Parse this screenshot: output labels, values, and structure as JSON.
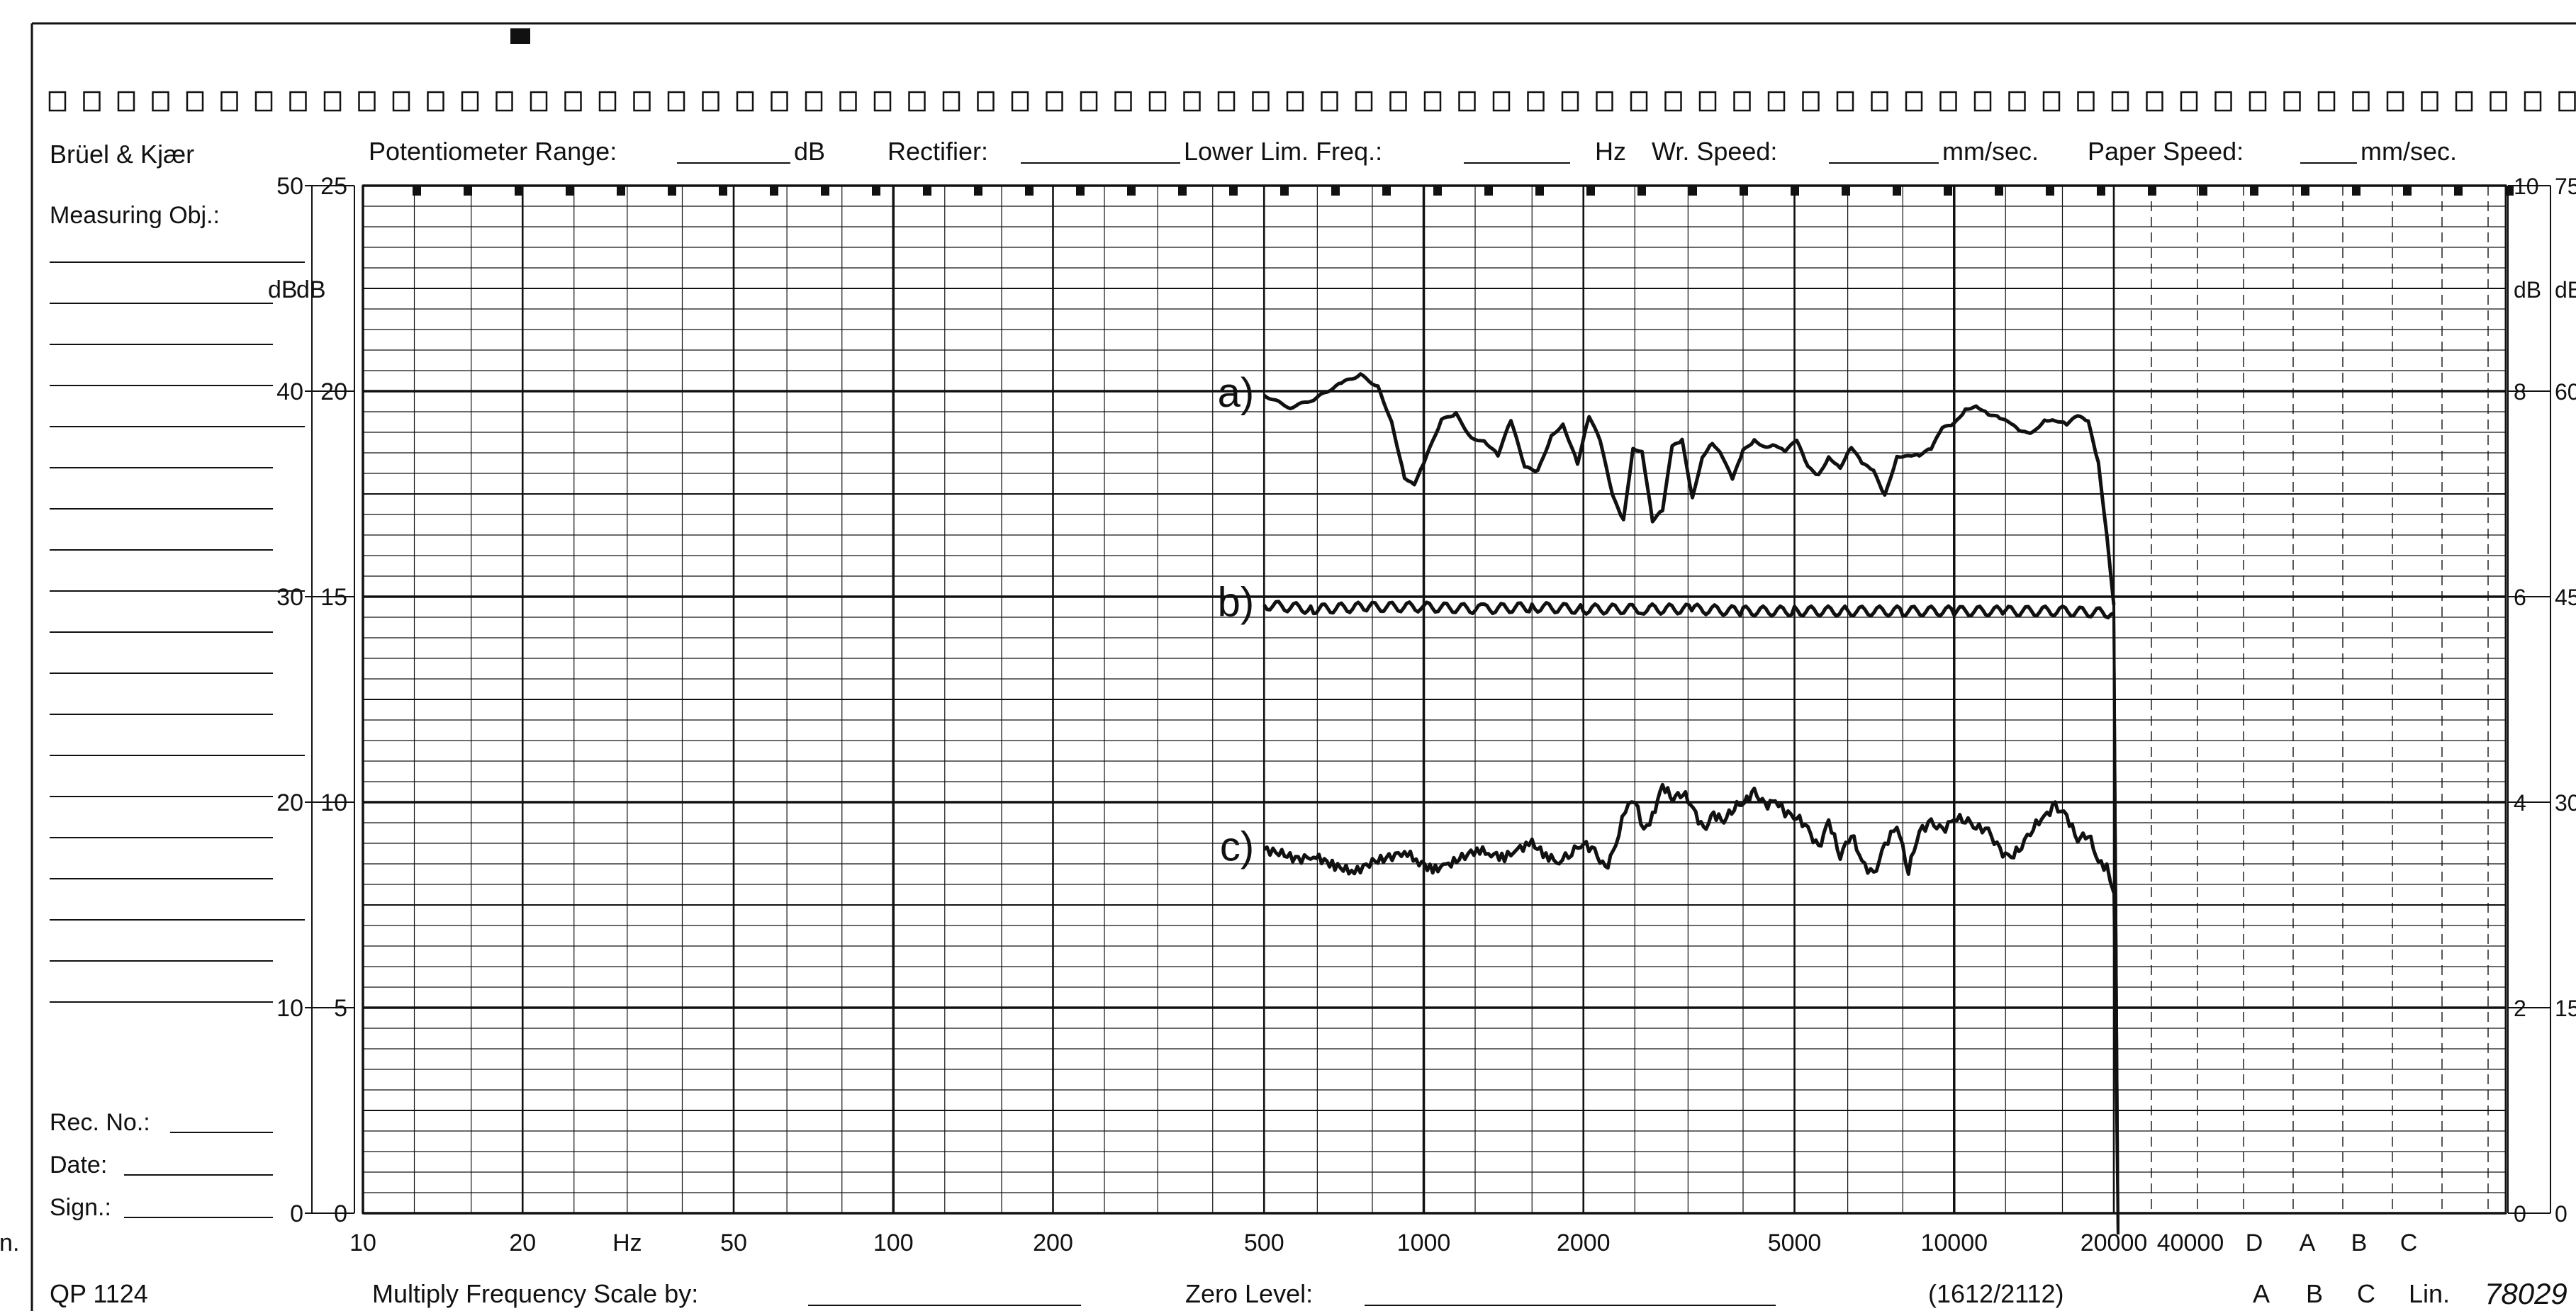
{
  "header": {
    "brand": "Brüel & Kjær",
    "potentiometer_label": "Potentiometer Range:",
    "potentiometer_unit": "dB",
    "rectifier_label": "Rectifier:",
    "lower_lim_label": "Lower Lim. Freq.:",
    "lower_lim_unit": "Hz",
    "wr_speed_label": "Wr. Speed:",
    "wr_speed_unit": "mm/sec.",
    "paper_speed_label": "Paper Speed:",
    "paper_speed_unit": "mm/sec."
  },
  "left_panel": {
    "measuring_obj": "Measuring Obj.:",
    "db_label_a": "dB",
    "db_label_b": "dB",
    "rec_no": "Rec. No.:",
    "date": "Date:",
    "sign": "Sign.:"
  },
  "footer": {
    "form_code": "QP 1124",
    "multiply_label": "Multiply Frequency Scale by:",
    "zero_level_label": "Zero Level:",
    "paper_ref": "(1612/2112)",
    "weighting_letters": [
      "A",
      "B",
      "C",
      "Lin."
    ],
    "serial": "78029"
  },
  "right_panel": {
    "db_label_a": "dB",
    "db_label_b": "dB",
    "ticks_a": [
      "10",
      "8",
      "6",
      "4",
      "2",
      "0"
    ],
    "ticks_b": [
      "75",
      "60",
      "45",
      "30",
      "15",
      "0"
    ]
  },
  "chart_data": {
    "type": "line",
    "xscale": "log",
    "xlim": [
      10,
      20000
    ],
    "ylim": [
      0,
      50
    ],
    "grid": true,
    "xticks": [
      {
        "label": "10",
        "value": 10
      },
      {
        "label": "20",
        "value": 20
      },
      {
        "label": "Hz",
        "value": 31.5
      },
      {
        "label": "50",
        "value": 50
      },
      {
        "label": "100",
        "value": 100
      },
      {
        "label": "200",
        "value": 200
      },
      {
        "label": "500",
        "value": 500
      },
      {
        "label": "1000",
        "value": 1000
      },
      {
        "label": "2000",
        "value": 2000
      },
      {
        "label": "5000",
        "value": 5000
      },
      {
        "label": "10000",
        "value": 10000
      },
      {
        "label": "20000",
        "value": 20000
      }
    ],
    "xticks_extra": [
      "40000",
      "D",
      "A",
      "B",
      "C",
      "Lin."
    ],
    "yticks_outer": [
      "50",
      "40",
      "30",
      "20",
      "10",
      "0"
    ],
    "yticks_inner": [
      "25",
      "20",
      "15",
      "10",
      "5",
      "0"
    ],
    "series": [
      {
        "name": "a)",
        "points": [
          [
            500,
            39.8
          ],
          [
            560,
            39.2
          ],
          [
            620,
            39.6
          ],
          [
            700,
            40.4
          ],
          [
            760,
            40.8
          ],
          [
            820,
            40.2
          ],
          [
            870,
            38.5
          ],
          [
            920,
            35.8
          ],
          [
            960,
            35.5
          ],
          [
            1000,
            36.5
          ],
          [
            1080,
            38.6
          ],
          [
            1150,
            38.9
          ],
          [
            1230,
            37.7
          ],
          [
            1300,
            37.6
          ],
          [
            1380,
            36.9
          ],
          [
            1460,
            38.6
          ],
          [
            1550,
            36.3
          ],
          [
            1640,
            36.1
          ],
          [
            1740,
            37.8
          ],
          [
            1830,
            38.4
          ],
          [
            1950,
            36.5
          ],
          [
            2050,
            38.8
          ],
          [
            2150,
            37.6
          ],
          [
            2270,
            34.9
          ],
          [
            2380,
            33.7
          ],
          [
            2480,
            37.2
          ],
          [
            2580,
            37.1
          ],
          [
            2700,
            33.7
          ],
          [
            2820,
            34.2
          ],
          [
            2940,
            37.3
          ],
          [
            3070,
            37.6
          ],
          [
            3210,
            34.8
          ],
          [
            3350,
            36.8
          ],
          [
            3500,
            37.5
          ],
          [
            3660,
            36.8
          ],
          [
            3820,
            35.7
          ],
          [
            4000,
            37.1
          ],
          [
            4200,
            37.6
          ],
          [
            4400,
            37.3
          ],
          [
            4600,
            37.4
          ],
          [
            4800,
            37.1
          ],
          [
            5050,
            37.6
          ],
          [
            5300,
            36.3
          ],
          [
            5550,
            35.9
          ],
          [
            5800,
            36.8
          ],
          [
            6100,
            36.3
          ],
          [
            6400,
            37.3
          ],
          [
            6700,
            36.5
          ],
          [
            7050,
            36.1
          ],
          [
            7400,
            34.9
          ],
          [
            7800,
            36.8
          ],
          [
            8200,
            36.9
          ],
          [
            8600,
            36.9
          ],
          [
            9050,
            37.2
          ],
          [
            9500,
            38.2
          ],
          [
            10000,
            38.4
          ],
          [
            10500,
            39.1
          ],
          [
            11000,
            39.3
          ],
          [
            11600,
            38.9
          ],
          [
            12200,
            38.7
          ],
          [
            12800,
            38.4
          ],
          [
            13400,
            38.0
          ],
          [
            14100,
            38.0
          ],
          [
            14800,
            38.6
          ],
          [
            15500,
            38.6
          ],
          [
            16300,
            38.4
          ],
          [
            17100,
            38.8
          ],
          [
            17900,
            38.5
          ],
          [
            18700,
            36.5
          ],
          [
            19400,
            33.0
          ],
          [
            20000,
            29.6
          ]
        ]
      },
      {
        "name": "b)",
        "points": [
          [
            500,
            29.6
          ],
          [
            620,
            29.4
          ],
          [
            780,
            29.5
          ],
          [
            1000,
            29.5
          ],
          [
            1300,
            29.4
          ],
          [
            1600,
            29.5
          ],
          [
            2000,
            29.4
          ],
          [
            2600,
            29.4
          ],
          [
            3200,
            29.4
          ],
          [
            4000,
            29.3
          ],
          [
            5000,
            29.3
          ],
          [
            6300,
            29.3
          ],
          [
            8000,
            29.3
          ],
          [
            10000,
            29.3
          ],
          [
            12500,
            29.3
          ],
          [
            16000,
            29.3
          ],
          [
            20000,
            29.2
          ]
        ]
      },
      {
        "name": "c)",
        "points": [
          [
            500,
            17.7
          ],
          [
            540,
            17.5
          ],
          [
            580,
            17.2
          ],
          [
            620,
            17.4
          ],
          [
            680,
            16.9
          ],
          [
            740,
            16.6
          ],
          [
            800,
            17.1
          ],
          [
            860,
            17.3
          ],
          [
            920,
            17.6
          ],
          [
            980,
            17.1
          ],
          [
            1040,
            16.7
          ],
          [
            1100,
            16.9
          ],
          [
            1180,
            17.3
          ],
          [
            1260,
            17.7
          ],
          [
            1340,
            17.5
          ],
          [
            1420,
            17.3
          ],
          [
            1500,
            17.7
          ],
          [
            1600,
            18.0
          ],
          [
            1700,
            17.4
          ],
          [
            1800,
            17.1
          ],
          [
            1900,
            17.6
          ],
          [
            2000,
            18.0
          ],
          [
            2100,
            17.6
          ],
          [
            2200,
            16.7
          ],
          [
            2300,
            17.9
          ],
          [
            2400,
            19.7
          ],
          [
            2500,
            20.1
          ],
          [
            2600,
            18.6
          ],
          [
            2700,
            19.3
          ],
          [
            2820,
            20.8
          ],
          [
            2950,
            20.2
          ],
          [
            3080,
            20.5
          ],
          [
            3220,
            19.7
          ],
          [
            3370,
            18.6
          ],
          [
            3520,
            19.4
          ],
          [
            3680,
            19.1
          ],
          [
            3850,
            19.8
          ],
          [
            4020,
            20.0
          ],
          [
            4200,
            20.5
          ],
          [
            4400,
            19.8
          ],
          [
            4600,
            20.1
          ],
          [
            4800,
            19.5
          ],
          [
            5050,
            19.3
          ],
          [
            5300,
            18.7
          ],
          [
            5550,
            17.7
          ],
          [
            5800,
            19.1
          ],
          [
            6100,
            17.4
          ],
          [
            6400,
            18.5
          ],
          [
            6700,
            17.1
          ],
          [
            7050,
            16.4
          ],
          [
            7400,
            17.9
          ],
          [
            7800,
            18.9
          ],
          [
            8200,
            16.7
          ],
          [
            8600,
            18.6
          ],
          [
            9050,
            19.0
          ],
          [
            9500,
            18.6
          ],
          [
            10000,
            19.2
          ],
          [
            10500,
            19.2
          ],
          [
            11000,
            18.8
          ],
          [
            11600,
            18.6
          ],
          [
            12200,
            17.6
          ],
          [
            12800,
            17.3
          ],
          [
            13400,
            17.9
          ],
          [
            14100,
            18.8
          ],
          [
            14800,
            19.3
          ],
          [
            15500,
            19.8
          ],
          [
            16300,
            19.3
          ],
          [
            17100,
            18.2
          ],
          [
            17900,
            18.5
          ],
          [
            18700,
            17.1
          ],
          [
            19400,
            16.8
          ],
          [
            20000,
            15.6
          ]
        ]
      }
    ]
  }
}
